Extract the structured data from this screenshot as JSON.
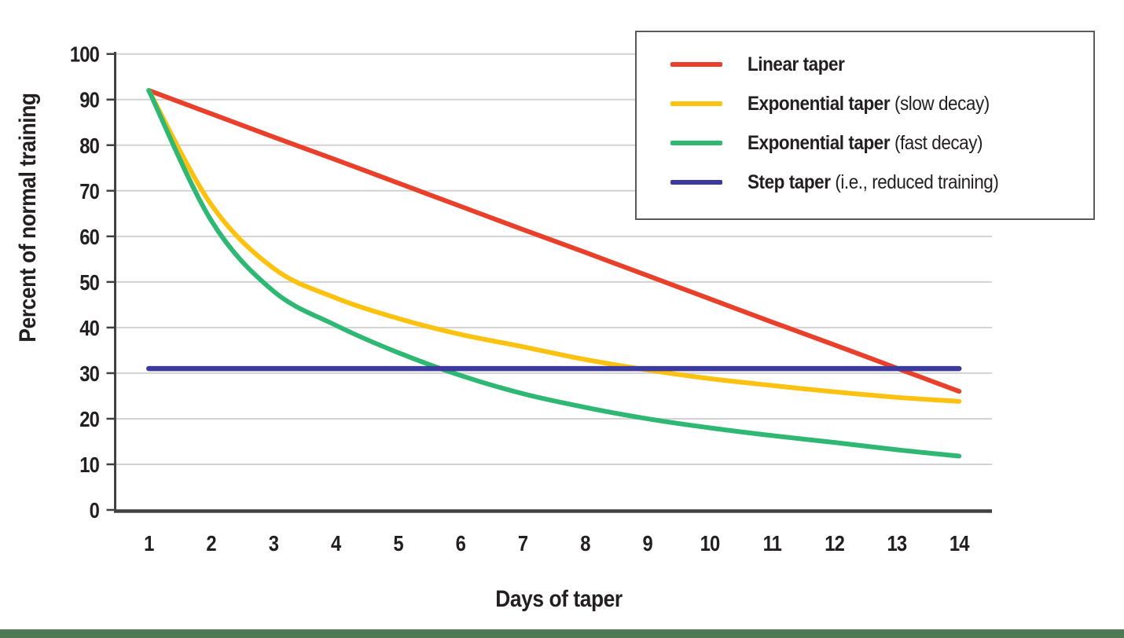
{
  "figure": {
    "background": "#ffffff",
    "footer_bar_color": "#4e7a54"
  },
  "chart_data": {
    "type": "line",
    "title": "",
    "xlabel": "Days of taper",
    "ylabel": "Percent of normal training",
    "x": [
      1,
      2,
      3,
      4,
      5,
      6,
      7,
      8,
      9,
      10,
      11,
      12,
      13,
      14
    ],
    "x_tick_labels": [
      "1",
      "2",
      "3",
      "4",
      "5",
      "6",
      "7",
      "8",
      "9",
      "10",
      "11",
      "12",
      "13",
      "14"
    ],
    "y_tick_labels": [
      "0",
      "10",
      "20",
      "30",
      "40",
      "50",
      "60",
      "70",
      "80",
      "90",
      "100"
    ],
    "ylim": [
      0,
      100
    ],
    "ytick_step": 10,
    "grid": true,
    "gridline_color": "#d2d2d2",
    "axis_color": "#414042",
    "text_color": "#231f20",
    "legend_position": "top-right",
    "series": [
      {
        "name": "Linear taper",
        "qualifier": "",
        "color": "#e8402a",
        "values": [
          92,
          86.9,
          81.8,
          76.8,
          71.7,
          66.6,
          61.5,
          56.5,
          51.4,
          46.3,
          41.2,
          36.2,
          31.1,
          26
        ]
      },
      {
        "name": "Exponential taper",
        "qualifier": "(slow decay)",
        "color": "#fdc110",
        "values": [
          92,
          67,
          53,
          46.5,
          42,
          38.5,
          35.8,
          33,
          30.7,
          28.8,
          27.3,
          25.9,
          24.7,
          23.8
        ]
      },
      {
        "name": "Exponential taper",
        "qualifier": "(fast decay)",
        "color": "#2eb873",
        "values": [
          92,
          63.5,
          48,
          40.5,
          34.5,
          29.5,
          25.5,
          22.5,
          20,
          18,
          16.3,
          14.8,
          13.2,
          11.8
        ]
      },
      {
        "name": "Step taper",
        "qualifier": "(i.e., reduced training)",
        "color": "#3c3b9d",
        "values": [
          31,
          31,
          31,
          31,
          31,
          31,
          31,
          31,
          31,
          31,
          31,
          31,
          31,
          31
        ]
      }
    ]
  }
}
